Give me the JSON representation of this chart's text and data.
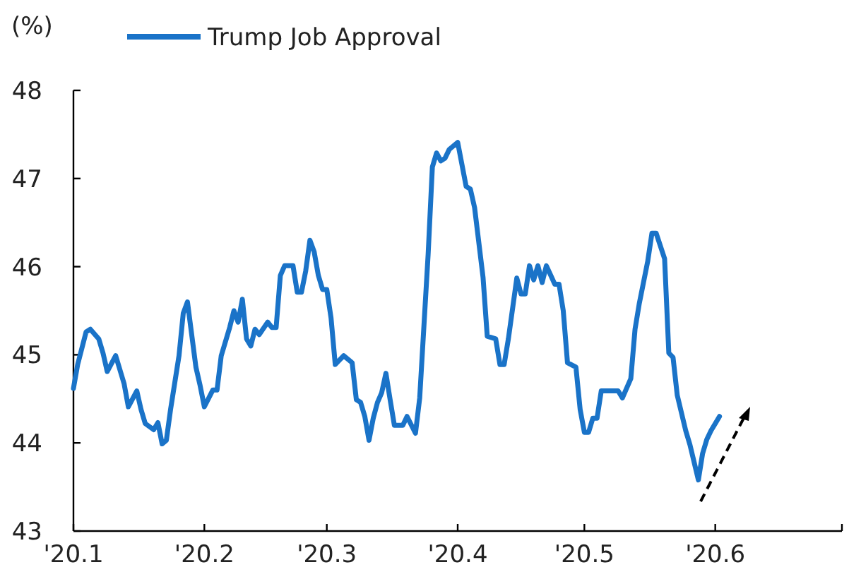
{
  "chart_data": {
    "type": "line",
    "ylabel": "(%)",
    "legend": "top left",
    "grid": false,
    "marker": "none",
    "line_style": "solid",
    "xlim": [
      "2020-01-01",
      "2020-07-01"
    ],
    "xticks": [
      {
        "value": "2020-01-01",
        "label": "'20.1"
      },
      {
        "value": "2020-02-01",
        "label": "'20.2"
      },
      {
        "value": "2020-03-01",
        "label": "'20.3"
      },
      {
        "value": "2020-04-01",
        "label": "'20.4"
      },
      {
        "value": "2020-05-01",
        "label": "'20.5"
      },
      {
        "value": "2020-06-01",
        "label": "'20.6"
      },
      {
        "value": "2020-07-01",
        "label": null
      }
    ],
    "ylim": [
      43,
      48
    ],
    "yticks": [
      43,
      44,
      45,
      46,
      47,
      48
    ],
    "series": [
      {
        "name": "Trump Job Approval",
        "color": "#1a73c8",
        "x": [
          "2020-01-01",
          "2020-01-02",
          "2020-01-04",
          "2020-01-05",
          "2020-01-07",
          "2020-01-08",
          "2020-01-09",
          "2020-01-11",
          "2020-01-13",
          "2020-01-14",
          "2020-01-16",
          "2020-01-17",
          "2020-01-18",
          "2020-01-20",
          "2020-01-21",
          "2020-01-22",
          "2020-01-23",
          "2020-01-24",
          "2020-01-26",
          "2020-01-27",
          "2020-01-28",
          "2020-01-30",
          "2020-01-31",
          "2020-02-01",
          "2020-02-03",
          "2020-02-04",
          "2020-02-05",
          "2020-02-07",
          "2020-02-08",
          "2020-02-09",
          "2020-02-10",
          "2020-02-11",
          "2020-02-12",
          "2020-02-13",
          "2020-02-14",
          "2020-02-16",
          "2020-02-17",
          "2020-02-18",
          "2020-02-19",
          "2020-02-20",
          "2020-02-22",
          "2020-02-23",
          "2020-02-24",
          "2020-02-25",
          "2020-02-26",
          "2020-02-27",
          "2020-02-28",
          "2020-02-29",
          "2020-03-01",
          "2020-03-02",
          "2020-03-03",
          "2020-03-05",
          "2020-03-07",
          "2020-03-08",
          "2020-03-09",
          "2020-03-10",
          "2020-03-11",
          "2020-03-12",
          "2020-03-13",
          "2020-03-14",
          "2020-03-15",
          "2020-03-16",
          "2020-03-17",
          "2020-03-19",
          "2020-03-20",
          "2020-03-22",
          "2020-03-23",
          "2020-03-25",
          "2020-03-26",
          "2020-03-27",
          "2020-03-28",
          "2020-03-29",
          "2020-03-30",
          "2020-04-01",
          "2020-04-03",
          "2020-04-04",
          "2020-04-05",
          "2020-04-07",
          "2020-04-08",
          "2020-04-10",
          "2020-04-11",
          "2020-04-12",
          "2020-04-13",
          "2020-04-15",
          "2020-04-16",
          "2020-04-17",
          "2020-04-18",
          "2020-04-19",
          "2020-04-20",
          "2020-04-21",
          "2020-04-22",
          "2020-04-24",
          "2020-04-25",
          "2020-04-26",
          "2020-04-27",
          "2020-04-29",
          "2020-04-30",
          "2020-05-01",
          "2020-05-02",
          "2020-05-03",
          "2020-05-04",
          "2020-05-05",
          "2020-05-07",
          "2020-05-09",
          "2020-05-10",
          "2020-05-12",
          "2020-05-13",
          "2020-05-14",
          "2020-05-16",
          "2020-05-17",
          "2020-05-18",
          "2020-05-20",
          "2020-05-21",
          "2020-05-22",
          "2020-05-23",
          "2020-05-25",
          "2020-05-26",
          "2020-05-28",
          "2020-05-29",
          "2020-05-30",
          "2020-05-31",
          "2020-06-02"
        ],
        "values": [
          44.62,
          44.89,
          45.26,
          45.29,
          45.18,
          45.02,
          44.81,
          44.99,
          44.67,
          44.41,
          44.59,
          44.38,
          44.22,
          44.15,
          44.23,
          43.99,
          44.03,
          44.38,
          44.99,
          45.47,
          45.6,
          44.86,
          44.65,
          44.41,
          44.6,
          44.6,
          44.99,
          45.31,
          45.5,
          45.37,
          45.63,
          45.18,
          45.1,
          45.29,
          45.23,
          45.37,
          45.31,
          45.31,
          45.9,
          46.01,
          46.01,
          45.71,
          45.71,
          45.95,
          46.3,
          46.17,
          45.9,
          45.74,
          45.74,
          45.42,
          44.89,
          44.99,
          44.91,
          44.49,
          44.46,
          44.3,
          44.03,
          44.28,
          44.46,
          44.57,
          44.79,
          44.49,
          44.2,
          44.2,
          44.3,
          44.11,
          44.51,
          46.14,
          47.13,
          47.29,
          47.2,
          47.23,
          47.33,
          47.41,
          46.91,
          46.88,
          46.67,
          45.88,
          45.21,
          45.18,
          44.89,
          44.89,
          45.18,
          45.87,
          45.69,
          45.69,
          46.01,
          45.85,
          46.01,
          45.82,
          46.01,
          45.8,
          45.8,
          45.5,
          44.91,
          44.86,
          44.38,
          44.12,
          44.12,
          44.28,
          44.28,
          44.59,
          44.59,
          44.59,
          44.51,
          44.73,
          45.29,
          45.58,
          46.06,
          46.38,
          46.38,
          46.09,
          45.02,
          44.97,
          44.54,
          44.14,
          43.98,
          43.58,
          43.88,
          44.04,
          44.14,
          44.3
        ]
      }
    ]
  }
}
